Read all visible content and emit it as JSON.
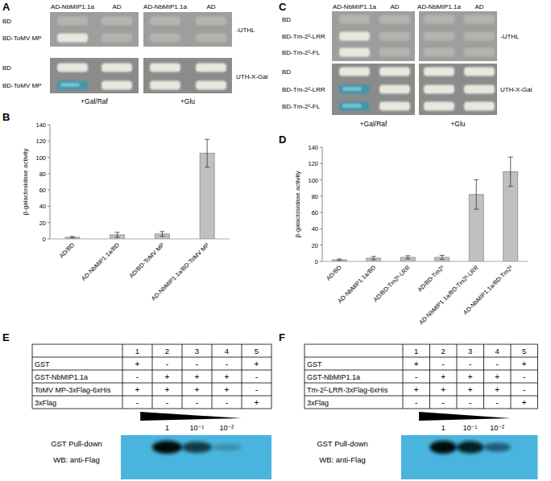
{
  "panels": {
    "A": {
      "letter": "A",
      "col_headers": [
        "AD-NbMIP1.1a",
        "AD",
        "AD-NbMIP1.1a",
        "AD"
      ],
      "rows": [
        [
          "BD",
          "BD-ToMV MP"
        ],
        [
          "BD",
          "BD-ToMV MP"
        ]
      ],
      "media": [
        "-UTHL",
        "UTH-X-Gal"
      ],
      "conditions": [
        "+Gal/Raf",
        "+Glu"
      ]
    },
    "C": {
      "letter": "C",
      "col_headers": [
        "AD-NbMIP1.1a",
        "AD",
        "AD-NbMIP1.1a",
        "AD"
      ],
      "rows": [
        [
          "BD",
          "BD-Tm-2²-LRR",
          "BD-Tm-2²-FL"
        ],
        [
          "BD",
          "BD-Tm-2²-LRR",
          "BD-Tm-2²-FL"
        ]
      ],
      "media": [
        "-UTHL",
        "UTH-X-Gal"
      ],
      "conditions": [
        "+Gal/Raf",
        "+Glu"
      ]
    },
    "E": {
      "letter": "E",
      "columns": [
        1,
        2,
        3,
        4,
        5
      ],
      "rows": [
        {
          "label": "GST",
          "cells": [
            "+",
            "-",
            "-",
            "-",
            "+"
          ]
        },
        {
          "label": "GST-NbMIP1.1a",
          "cells": [
            "-",
            "+",
            "+",
            "+",
            "-"
          ]
        },
        {
          "label": "ToMV MP-3xFlag-6xHis",
          "cells": [
            "+",
            "+",
            "+",
            "+",
            "-"
          ]
        },
        {
          "label": "3xFlag",
          "cells": [
            "-",
            "-",
            "-",
            "-",
            "+"
          ]
        }
      ],
      "dilutions": [
        "1",
        "10⁻¹",
        "10⁻²"
      ],
      "blot_labels": [
        "GST Pull-down",
        "WB: anti-Flag"
      ]
    },
    "F": {
      "letter": "F",
      "columns": [
        1,
        2,
        3,
        4,
        5
      ],
      "rows": [
        {
          "label": "GST",
          "cells": [
            "+",
            "-",
            "-",
            "-",
            "+"
          ]
        },
        {
          "label": "GST-NbMIP1.1a",
          "cells": [
            "-",
            "+",
            "+",
            "+",
            "-"
          ]
        },
        {
          "label": "Tm-2²-LRR-3xFlag-6xHis",
          "cells": [
            "+",
            "+",
            "+",
            "+",
            "-"
          ]
        },
        {
          "label": "3xFlag",
          "cells": [
            "-",
            "-",
            "-",
            "-",
            "+"
          ]
        }
      ],
      "dilutions": [
        "1",
        "10⁻¹",
        "10⁻²"
      ],
      "blot_labels": [
        "GST Pull-down",
        "WB: anti-Flag"
      ]
    }
  },
  "chart_data": [
    {
      "type": "bar",
      "title": "B",
      "y_label": "β-galactosidase activity",
      "categories": [
        "AD/BD",
        "AD-NbMIP1.1a/BD",
        "AD/BD-ToMV MP",
        "AD-NbMIP1.1a/BD-ToMV MP"
      ],
      "values": [
        2,
        5,
        6,
        105
      ],
      "errors": [
        1,
        3,
        3,
        17
      ],
      "color": "#c0c0c0",
      "ylim": [
        0,
        140
      ],
      "yticks": [
        0,
        20,
        40,
        60,
        80,
        100,
        120,
        140
      ],
      "grid": false
    },
    {
      "type": "bar",
      "title": "D",
      "y_label": "β-galactosidase activity",
      "categories": [
        "AD/BD",
        "AD-NbMIP1.1a/BD",
        "AD/BD-Tm2²-LRR",
        "AD/BD-Tm2²",
        "AD-NbMIP1.1a/BD-Tm2²-LRR",
        "AD-NbMIP1.1a/BD-Tm2²"
      ],
      "values": [
        2,
        4,
        5,
        5,
        82,
        110
      ],
      "errors": [
        1,
        2,
        2,
        2.5,
        18,
        18
      ],
      "color": "#c0c0c0",
      "ylim": [
        0,
        140
      ],
      "yticks": [
        0,
        20,
        40,
        60,
        80,
        100,
        120,
        140
      ],
      "grid": false
    }
  ]
}
